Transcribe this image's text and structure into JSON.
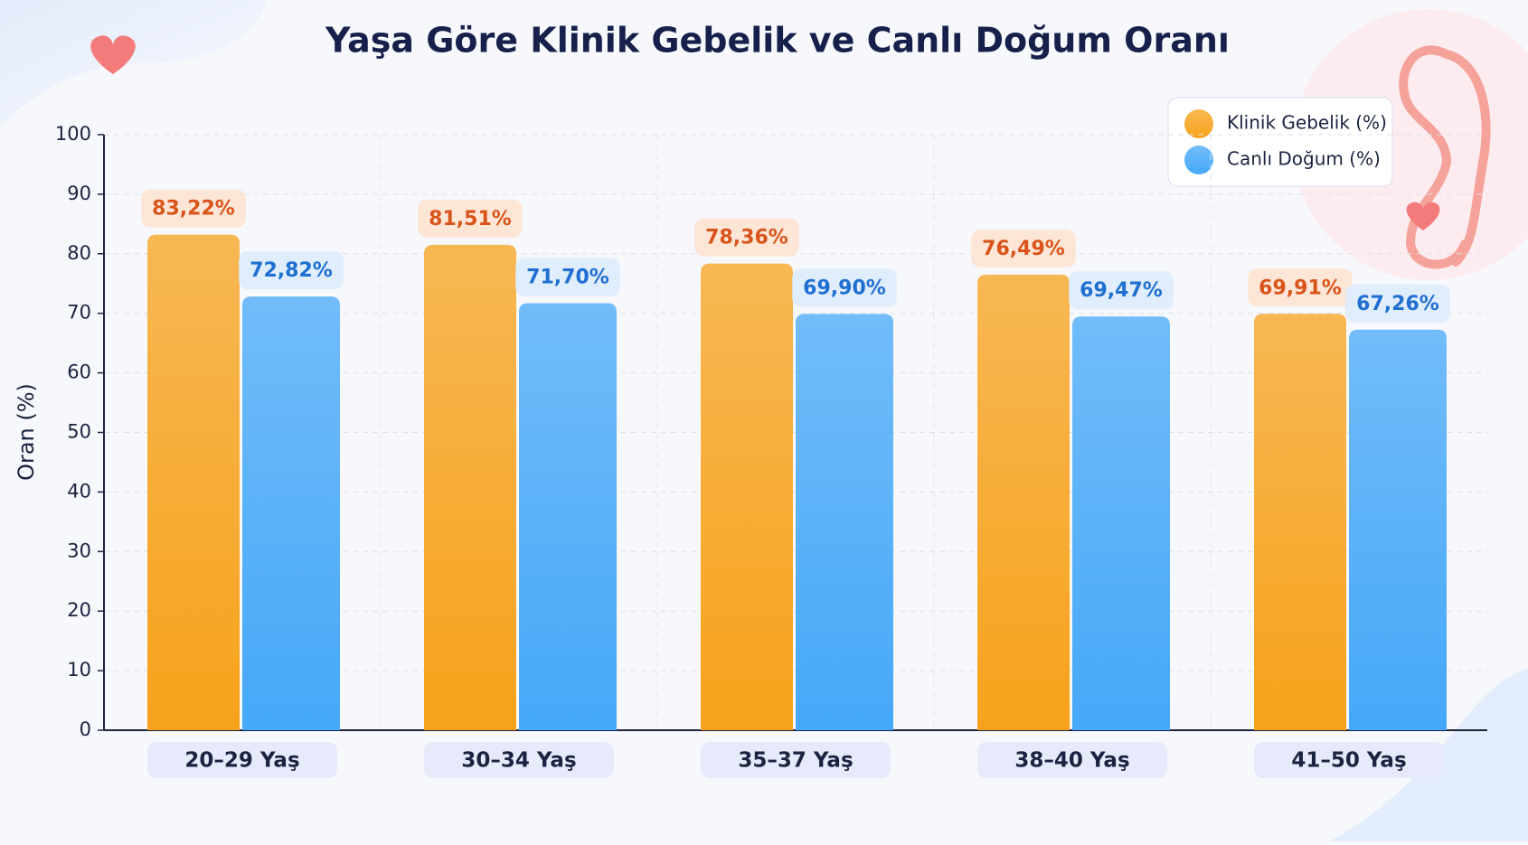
{
  "chart_data": {
    "type": "bar",
    "title": "Yaşa Göre Klinik Gebelik ve Canlı Doğum Oranı",
    "y_label": "Oran (%)",
    "categories": [
      "20–29 Yaş",
      "30–34 Yaş",
      "35–37 Yaş",
      "38–40 Yaş",
      "41–50 Yaş"
    ],
    "series": [
      {
        "name": "Klinik Gebelik (%)",
        "color": "#f7a21b",
        "values": [
          83.22,
          81.51,
          78.36,
          76.49,
          69.91
        ],
        "value_labels": [
          "83,22%",
          "81,51%",
          "78,36%",
          "76,49%",
          "69,91%"
        ]
      },
      {
        "name": "Canlı Doğum (%)",
        "color": "#45a8f8",
        "values": [
          72.82,
          71.7,
          69.9,
          69.47,
          67.26
        ],
        "value_labels": [
          "72,82%",
          "71,70%",
          "69,90%",
          "69,47%",
          "67,26%"
        ]
      }
    ],
    "ylim": [
      0,
      100
    ],
    "yticks": [
      0,
      10,
      20,
      30,
      40,
      50,
      60,
      70,
      80,
      90,
      100
    ],
    "grid": true,
    "legend": "top-right"
  }
}
